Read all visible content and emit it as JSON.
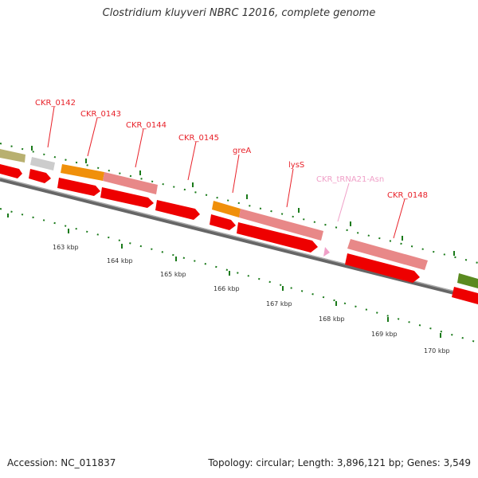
{
  "header": {
    "title": "Clostridium kluyveri NBRC 12016, complete genome"
  },
  "footer": {
    "accession": "Accession: NC_011837",
    "topology": "Topology: circular; Length: 3,896,121 bp; Genes: 3,549"
  },
  "gene_labels": [
    {
      "id": "ckr-0142",
      "text": "CKR_0142",
      "color": "#e8222a"
    },
    {
      "id": "ckr-0143",
      "text": "CKR_0143",
      "color": "#e8222a"
    },
    {
      "id": "ckr-0144",
      "text": "CKR_0144",
      "color": "#e8222a"
    },
    {
      "id": "ckr-0145",
      "text": "CKR_0145",
      "color": "#e8222a"
    },
    {
      "id": "grea",
      "text": "greA",
      "color": "#e8222a"
    },
    {
      "id": "lyss",
      "text": "lysS",
      "color": "#e8222a"
    },
    {
      "id": "ckr-trna21-asn",
      "text": "CKR_tRNA21-Asn",
      "color": "#f0a0c8"
    },
    {
      "id": "ckr-0148",
      "text": "CKR_0148",
      "color": "#e8222a"
    }
  ],
  "kbp_ticks": [
    "163 kbp",
    "164 kbp",
    "165 kbp",
    "166 kbp",
    "167 kbp",
    "168 kbp",
    "169 kbp",
    "170 kbp"
  ],
  "colors": {
    "cds_red": "#ee0000",
    "gene_pink": "#e88888",
    "gene_orange": "#f0900a",
    "gene_olive": "#b8b070",
    "gene_gray": "#cccccc",
    "gene_green": "#5a8a20",
    "trna": "#f0a0c8",
    "backbone": "#888888",
    "tick_green": "#1a7a1a"
  }
}
